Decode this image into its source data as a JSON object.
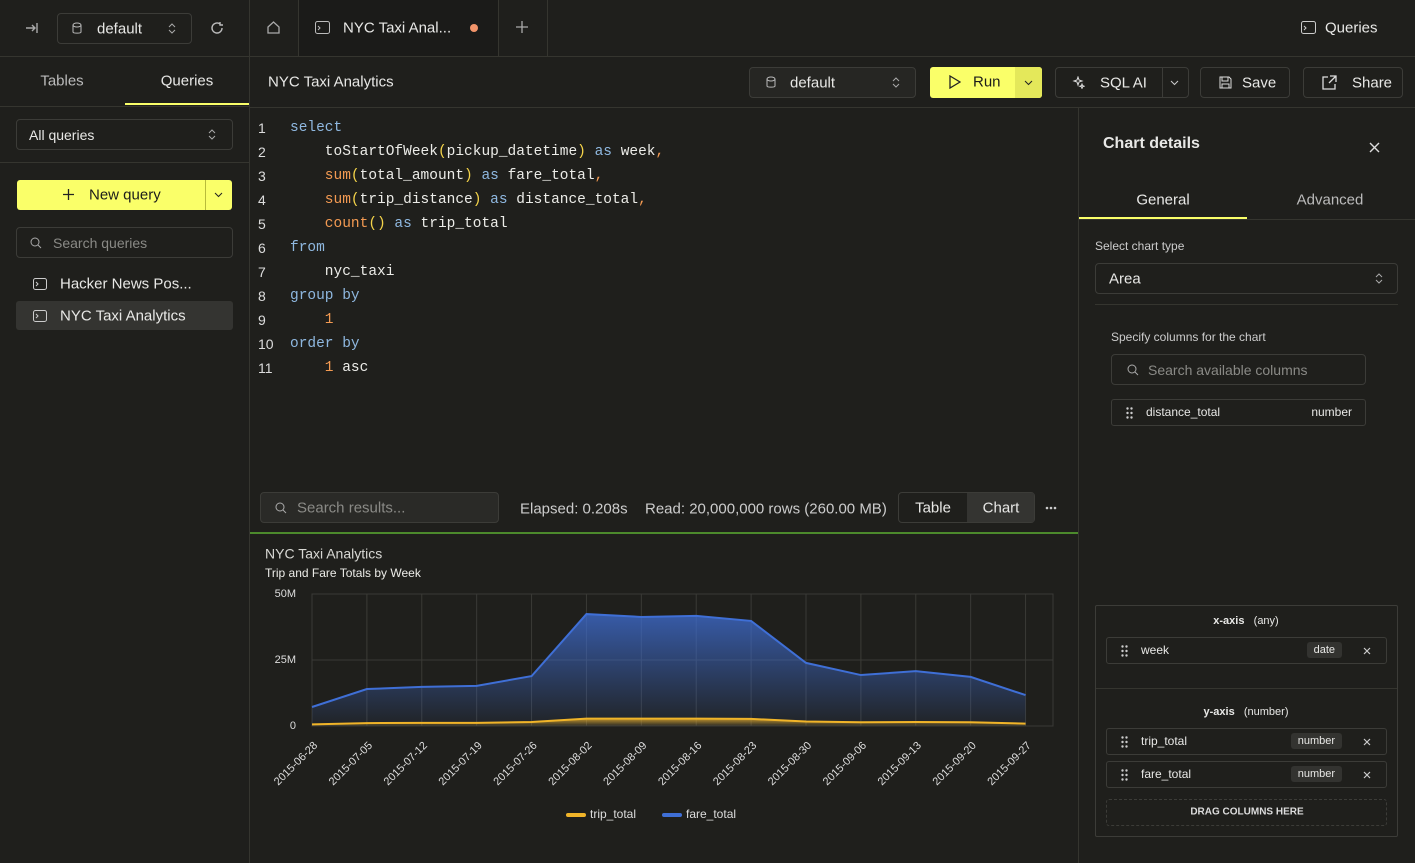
{
  "top_bar": {
    "database": "default",
    "tab_title": "NYC Taxi Anal...",
    "queries_button": "Queries"
  },
  "sidebar": {
    "tabs": [
      "Tables",
      "Queries"
    ],
    "filter": "All queries",
    "new_query": "New query",
    "search_placeholder": "Search queries",
    "queries": [
      "Hacker News Pos...",
      "NYC Taxi Analytics"
    ]
  },
  "toolbar": {
    "query_name": "NYC Taxi Analytics",
    "database": "default",
    "run": "Run",
    "sql_ai": "SQL AI",
    "save": "Save",
    "share": "Share"
  },
  "editor": {
    "lines": [
      {
        "number": "1",
        "tokens": [
          {
            "text": "select",
            "kind": "kw"
          }
        ]
      },
      {
        "number": "2",
        "tokens": [
          {
            "text": "    toStartOfWeek",
            "kind": "id"
          },
          {
            "text": "(",
            "kind": "paren"
          },
          {
            "text": "pickup_datetime",
            "kind": "id"
          },
          {
            "text": ")",
            "kind": "paren"
          },
          {
            "text": " as ",
            "kind": "kw"
          },
          {
            "text": "week",
            "kind": "id"
          },
          {
            "text": ",",
            "kind": "punct"
          }
        ]
      },
      {
        "number": "3",
        "tokens": [
          {
            "text": "    sum",
            "kind": "fn"
          },
          {
            "text": "(",
            "kind": "paren"
          },
          {
            "text": "total_amount",
            "kind": "id"
          },
          {
            "text": ")",
            "kind": "paren"
          },
          {
            "text": " as ",
            "kind": "kw"
          },
          {
            "text": "fare_total",
            "kind": "id"
          },
          {
            "text": ",",
            "kind": "punct"
          }
        ]
      },
      {
        "number": "4",
        "tokens": [
          {
            "text": "    sum",
            "kind": "fn"
          },
          {
            "text": "(",
            "kind": "paren"
          },
          {
            "text": "trip_distance",
            "kind": "id"
          },
          {
            "text": ")",
            "kind": "paren"
          },
          {
            "text": " as ",
            "kind": "kw"
          },
          {
            "text": "distance_total",
            "kind": "id"
          },
          {
            "text": ",",
            "kind": "punct"
          }
        ]
      },
      {
        "number": "5",
        "tokens": [
          {
            "text": "    count",
            "kind": "fn"
          },
          {
            "text": "()",
            "kind": "paren"
          },
          {
            "text": " as ",
            "kind": "kw"
          },
          {
            "text": "trip_total",
            "kind": "id"
          }
        ]
      },
      {
        "number": "6",
        "tokens": [
          {
            "text": "from",
            "kind": "kw"
          }
        ]
      },
      {
        "number": "7",
        "tokens": [
          {
            "text": "    nyc_taxi",
            "kind": "id"
          }
        ]
      },
      {
        "number": "8",
        "tokens": [
          {
            "text": "group by",
            "kind": "kw"
          }
        ]
      },
      {
        "number": "9",
        "tokens": [
          {
            "text": "    1",
            "kind": "num"
          }
        ]
      },
      {
        "number": "10",
        "tokens": [
          {
            "text": "order by",
            "kind": "kw"
          }
        ]
      },
      {
        "number": "11",
        "tokens": [
          {
            "text": "    1",
            "kind": "num"
          },
          {
            "text": " asc",
            "kind": "id"
          }
        ]
      }
    ]
  },
  "results": {
    "search_placeholder": "Search results...",
    "elapsed": "Elapsed: 0.208s",
    "read": "Read: 20,000,000 rows (260.00 MB)",
    "views": [
      "Table",
      "Chart"
    ]
  },
  "chart_data": {
    "type": "area",
    "title": "NYC Taxi Analytics",
    "subtitle": "Trip and Fare Totals by Week",
    "categories": [
      "2015-06-28",
      "2015-07-05",
      "2015-07-12",
      "2015-07-19",
      "2015-07-26",
      "2015-08-02",
      "2015-08-09",
      "2015-08-16",
      "2015-08-23",
      "2015-08-30",
      "2015-09-06",
      "2015-09-13",
      "2015-09-20",
      "2015-09-27"
    ],
    "series": [
      {
        "name": "trip_total",
        "color": "#f0b429",
        "values": [
          600000,
          1100000,
          1200000,
          1200000,
          1500000,
          2800000,
          2800000,
          2800000,
          2700000,
          1700000,
          1400000,
          1500000,
          1400000,
          900000
        ]
      },
      {
        "name": "fare_total",
        "color": "#3f6fd6",
        "values": [
          7200000,
          14000000,
          14800000,
          15200000,
          18900000,
          42400000,
          41300000,
          41700000,
          39800000,
          23900000,
          19300000,
          20800000,
          18600000,
          11700000
        ]
      }
    ],
    "ylim": [
      0,
      50000000
    ],
    "yticks": [
      0,
      {
        "value": 25000000,
        "label": "25M"
      },
      {
        "value": 50000000,
        "label": "50M"
      }
    ],
    "grid": true,
    "legend": "bottom"
  },
  "chart_details": {
    "title": "Chart details",
    "tabs": [
      "General",
      "Advanced"
    ],
    "chart_type_label": "Select chart type",
    "chart_type": "Area",
    "columns_label": "Specify columns for the chart",
    "columns_search_placeholder": "Search available columns",
    "available_columns": [
      {
        "name": "distance_total",
        "type": "number"
      }
    ],
    "x_axis": {
      "label": "x-axis",
      "hint": "(any)",
      "columns": [
        {
          "name": "week",
          "type": "date"
        }
      ]
    },
    "y_axis": {
      "label": "y-axis",
      "hint": "(number)",
      "columns": [
        {
          "name": "trip_total",
          "type": "number"
        },
        {
          "name": "fare_total",
          "type": "number"
        }
      ]
    },
    "drop_zone": "DRAG COLUMNS HERE"
  }
}
